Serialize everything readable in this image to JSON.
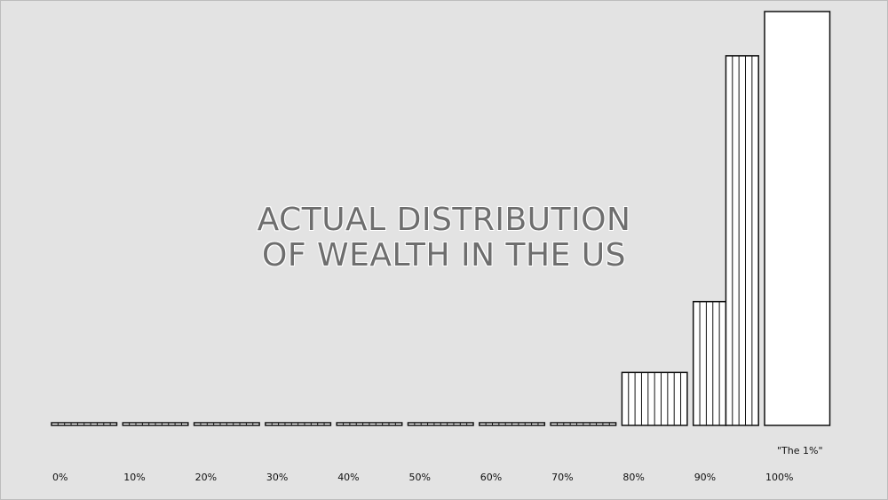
{
  "chart_data": {
    "type": "bar",
    "title_lines": [
      "ACTUAL DISTRIBUTION",
      "OF WEALTH IN THE US"
    ],
    "categories": [
      "0%",
      "10%",
      "20%",
      "30%",
      "40%",
      "50%",
      "60%",
      "70%",
      "80%",
      "90%",
      "100%"
    ],
    "values": [
      0.2,
      0.2,
      0.2,
      0.2,
      0.2,
      0.2,
      0.2,
      0.2,
      12.8,
      29.9,
      100
    ],
    "segments_per_bar": [
      10,
      10,
      10,
      10,
      10,
      10,
      10,
      10,
      10,
      10,
      1
    ],
    "split_bar": {
      "category": "90%",
      "parts": [
        {
          "value": 29.9,
          "segments": 5
        },
        {
          "value": 89.3,
          "segments": 5
        }
      ]
    },
    "annotations": [
      {
        "text": "\"The 1%\"",
        "category": "100%"
      }
    ],
    "ylim": [
      0,
      100
    ],
    "grid": false,
    "legend": "none",
    "xlabel": "",
    "ylabel": "",
    "colors": {
      "background": "#e3e3e3",
      "bar_fill": "#ffffff",
      "bar_stroke": "#111111",
      "title": "#6e6e6e"
    }
  }
}
